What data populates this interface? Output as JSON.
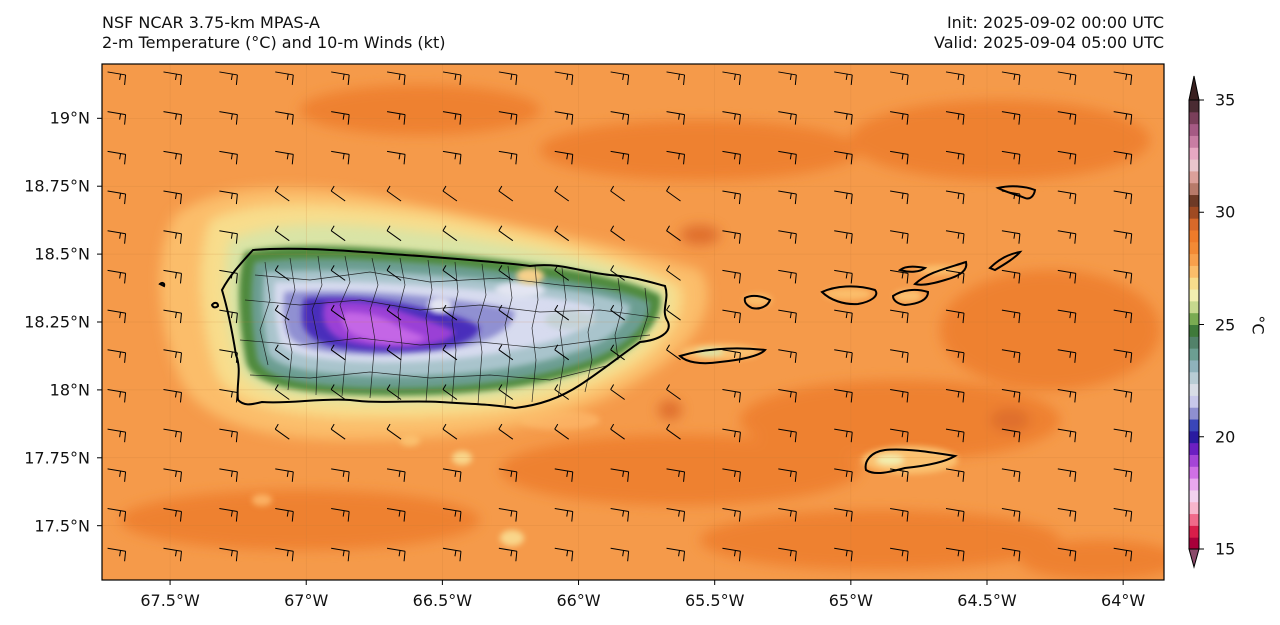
{
  "header": {
    "title_line1": "NSF NCAR 3.75-km MPAS-A",
    "title_line2": "2-m Temperature (°C) and 10-m Winds (kt)",
    "init_text": "Init: 2025-09-02 00:00 UTC",
    "valid_text": "Valid: 2025-09-04 05:00 UTC"
  },
  "map": {
    "lon_range": [
      -67.75,
      -63.85
    ],
    "lat_range": [
      17.3,
      19.2
    ],
    "latitude_ticks": [
      {
        "value": 19.0,
        "label": "19°N"
      },
      {
        "value": 18.75,
        "label": "18.75°N"
      },
      {
        "value": 18.5,
        "label": "18.5°N"
      },
      {
        "value": 18.25,
        "label": "18.25°N"
      },
      {
        "value": 18.0,
        "label": "18°N"
      },
      {
        "value": 17.75,
        "label": "17.75°N"
      },
      {
        "value": 17.5,
        "label": "17.5°N"
      }
    ],
    "longitude_ticks": [
      {
        "value": -67.5,
        "label": "67.5°W"
      },
      {
        "value": -67.0,
        "label": "67°W"
      },
      {
        "value": -66.5,
        "label": "66.5°W"
      },
      {
        "value": -66.0,
        "label": "66°W"
      },
      {
        "value": -65.5,
        "label": "65.5°W"
      },
      {
        "value": -65.0,
        "label": "65°W"
      },
      {
        "value": -64.5,
        "label": "64.5°W"
      },
      {
        "value": -64.0,
        "label": "64°W"
      }
    ],
    "background_color": "#f59a4a",
    "coast_color": "#000000"
  },
  "colorbar": {
    "label": "°C",
    "range": [
      15,
      35
    ],
    "tick_values": [
      15,
      20,
      25,
      30,
      35
    ],
    "tick_labels": [
      "15",
      "20",
      "25",
      "30",
      "35"
    ],
    "colors": [
      "#a8003a",
      "#d81e4a",
      "#f06a8a",
      "#f7b6cc",
      "#f3d2ef",
      "#e9a8ef",
      "#d070e6",
      "#a545d8",
      "#6c1fc2",
      "#2a1aa0",
      "#3a46b8",
      "#8f8fd0",
      "#c8c8ea",
      "#d8dde6",
      "#b8ccd4",
      "#8fb2bb",
      "#6c9e92",
      "#52826a",
      "#3f7a3a",
      "#7aab52",
      "#c7d98e",
      "#f2efb0",
      "#f8dd8c",
      "#fbbd6a",
      "#f8a04c",
      "#f28a35",
      "#ee7b2a",
      "#d8692a",
      "#a04a22",
      "#6e3a26",
      "#b77a6a",
      "#dca09a",
      "#e9c6cc",
      "#e7a8c2",
      "#c87da3",
      "#a55a84",
      "#7a3f5a",
      "#4a2b32"
    ],
    "under_color": "#8a4a6a",
    "over_color": "#3a2020"
  }
}
